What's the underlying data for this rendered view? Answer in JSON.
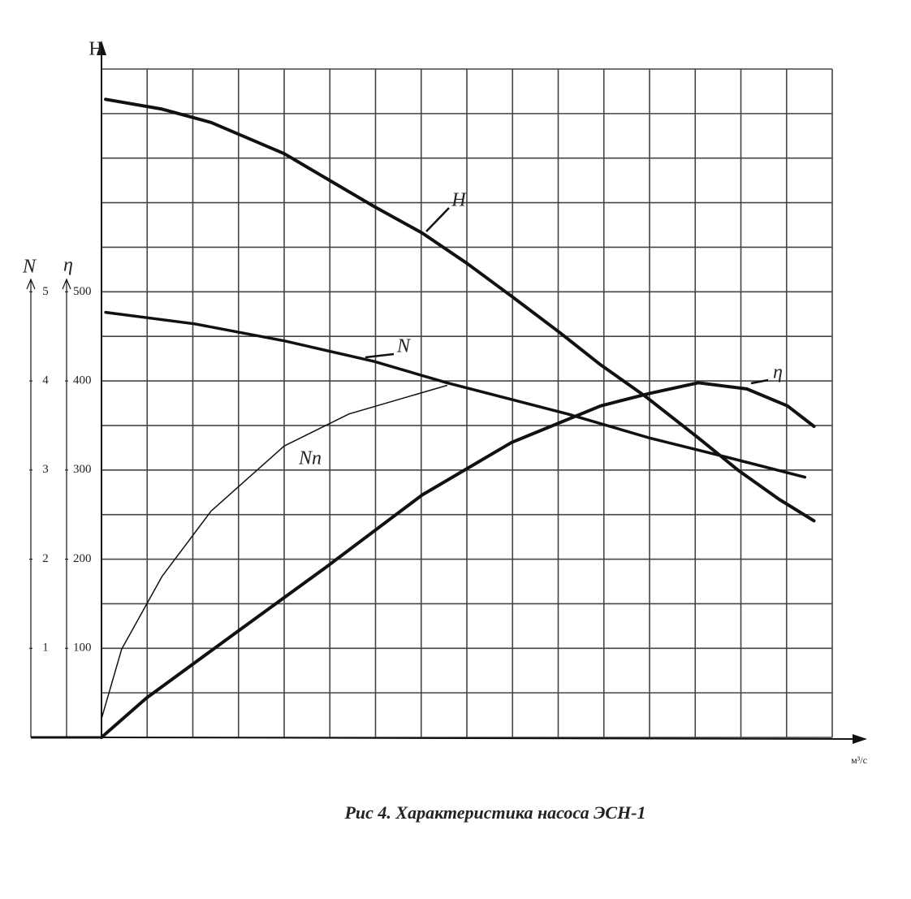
{
  "chart_data": {
    "type": "line",
    "title": "Рис 4. Характеристика насоса ЭСН-1",
    "y_label": "H",
    "y1_label": "η",
    "y2_label": "N",
    "x_label": "м³/с",
    "xlim": [
      0,
      16
    ],
    "ylim": [
      0,
      750
    ],
    "y2lim": [
      0,
      7.5
    ],
    "xgrid": [
      0,
      1,
      2,
      3,
      4,
      5,
      6,
      7,
      8,
      9,
      10,
      11,
      12,
      13,
      14,
      15,
      16
    ],
    "ygrid": [
      0,
      50,
      100,
      150,
      200,
      250,
      300,
      350,
      400,
      450,
      500,
      550,
      600,
      650,
      700,
      750
    ],
    "yticks": [
      100,
      200,
      300,
      400,
      500
    ],
    "y2ticks": [
      1,
      2,
      3,
      4,
      5
    ],
    "grid": true,
    "series": [
      {
        "name": "H",
        "color": "#111",
        "width": 4,
        "x": [
          0.09,
          1.33,
          2.4,
          4,
          5.96,
          7.02,
          8,
          8.98,
          10.04,
          10.93,
          11.9,
          13.07,
          13.96,
          14.84,
          15.6
        ],
        "values": [
          716,
          705,
          690,
          655,
          596,
          566,
          532,
          495,
          454,
          418,
          383,
          336,
          299,
          267,
          243
        ]
      },
      {
        "name": "N",
        "color": "#111",
        "width": 3.5,
        "x": [
          0.09,
          2.04,
          4,
          5.96,
          7.56,
          10.2,
          12,
          13.8,
          15.4
        ],
        "values": [
          477,
          464,
          445,
          422,
          398,
          363,
          336,
          313,
          292
        ]
      },
      {
        "name": "η",
        "color": "#111",
        "width": 4,
        "x": [
          0,
          0.98,
          2.93,
          4.89,
          7.02,
          8.98,
          10.93,
          12,
          13.07,
          14.13,
          15.02,
          15.6
        ],
        "values": [
          0,
          44,
          117,
          190,
          272,
          331,
          372,
          386,
          398,
          391,
          372,
          349
        ]
      },
      {
        "name": "Nn",
        "color": "#111",
        "width": 1.5,
        "x": [
          0,
          0.44,
          1.33,
          2.4,
          4,
          5.42,
          7.56
        ],
        "values": [
          21,
          99,
          181,
          254,
          327,
          363,
          395
        ]
      }
    ]
  }
}
